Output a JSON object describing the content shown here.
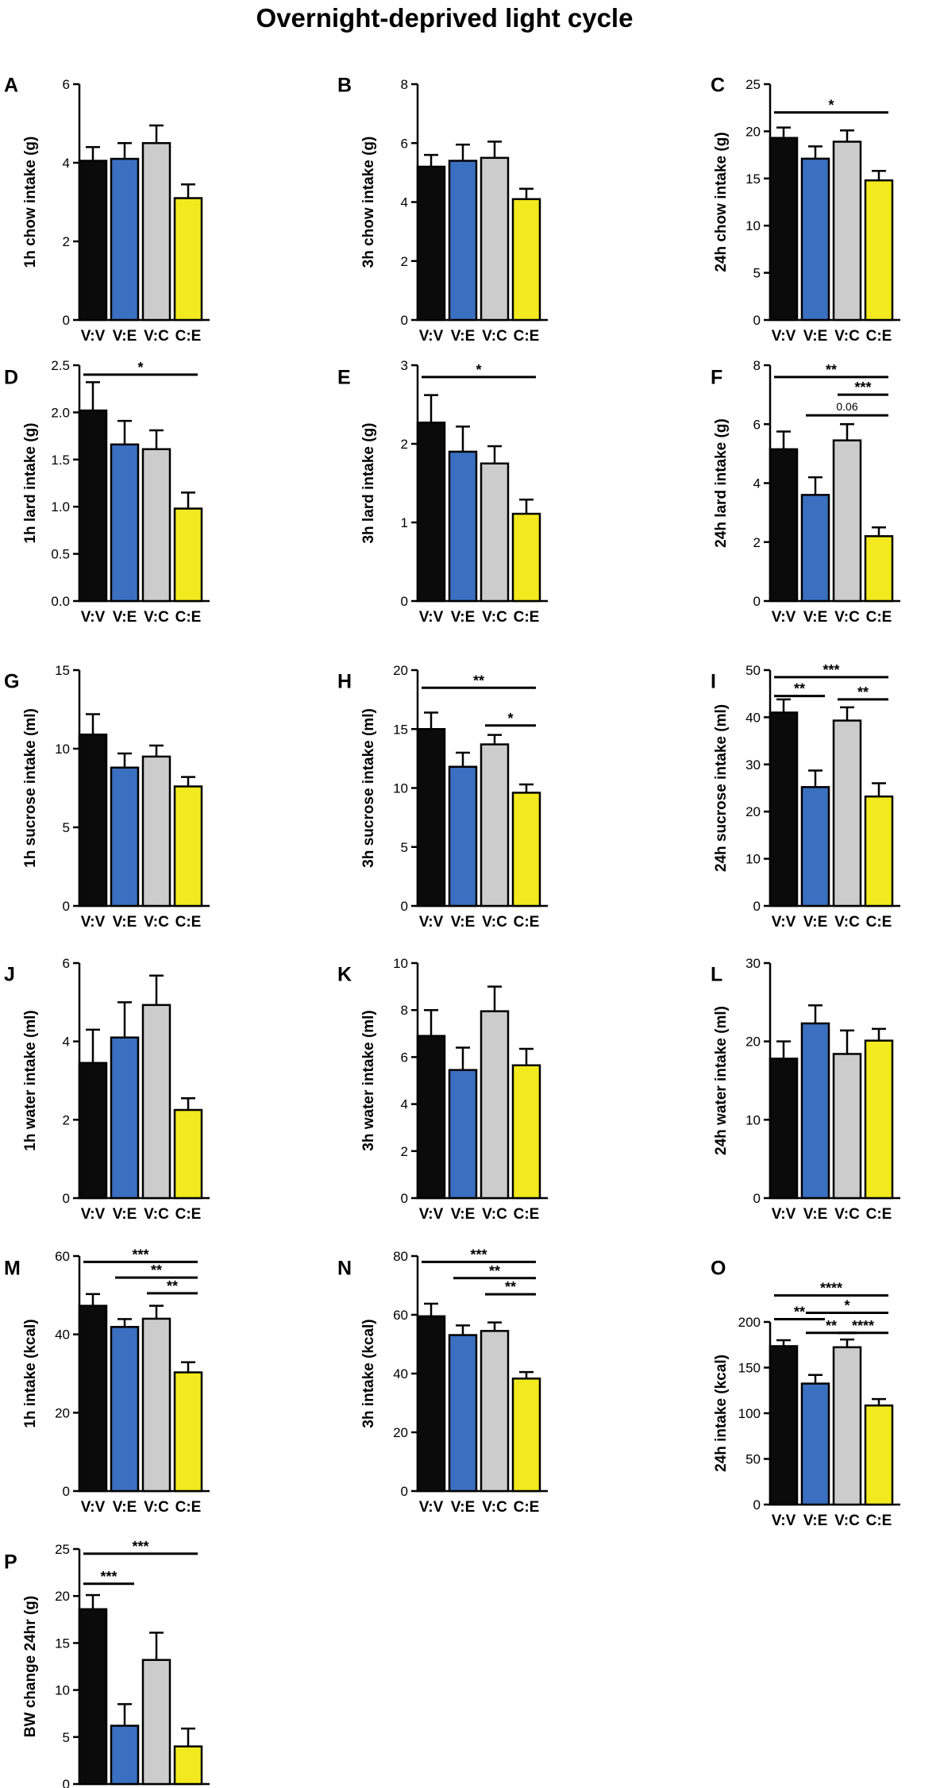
{
  "figure": {
    "title": "Overnight-deprived light cycle"
  },
  "colors": {
    "V:V": "#0b0b0b",
    "V:E": "#3b6fc0",
    "V:C": "#cccccc",
    "C:E": "#f2ea1e",
    "axis": "#000000"
  },
  "chart_data": [
    {
      "panel": "A",
      "type": "bar",
      "ylabel": "1h chow intake (g)",
      "categories": [
        "V:V",
        "V:E",
        "V:C",
        "C:E"
      ],
      "values": [
        4.05,
        4.1,
        4.5,
        3.1
      ],
      "errors": [
        0.35,
        0.4,
        0.45,
        0.35
      ],
      "ylim": [
        0,
        6
      ],
      "yticks": [
        "0",
        "2",
        "4",
        "6"
      ],
      "sig": []
    },
    {
      "panel": "B",
      "type": "bar",
      "ylabel": "3h chow intake (g)",
      "categories": [
        "V:V",
        "V:E",
        "V:C",
        "C:E"
      ],
      "values": [
        5.2,
        5.4,
        5.5,
        4.1
      ],
      "errors": [
        0.4,
        0.55,
        0.55,
        0.35
      ],
      "ylim": [
        0,
        8
      ],
      "yticks": [
        "0",
        "2",
        "4",
        "6",
        "8"
      ],
      "sig": []
    },
    {
      "panel": "C",
      "type": "bar",
      "ylabel": "24h chow intake (g)",
      "categories": [
        "V:V",
        "V:E",
        "V:C",
        "C:E"
      ],
      "values": [
        19.3,
        17.1,
        18.9,
        14.8
      ],
      "errors": [
        1.1,
        1.3,
        1.2,
        1.0
      ],
      "ylim": [
        0,
        25
      ],
      "yticks": [
        "0",
        "5",
        "10",
        "15",
        "20",
        "25"
      ],
      "sig": [
        {
          "from": 0,
          "to": 3,
          "y": 22,
          "label": "*"
        }
      ]
    },
    {
      "panel": "D",
      "type": "bar",
      "ylabel": "1h lard intake (g)",
      "categories": [
        "V:V",
        "V:E",
        "V:C",
        "C:E"
      ],
      "values": [
        2.02,
        1.66,
        1.61,
        0.98
      ],
      "errors": [
        0.3,
        0.25,
        0.2,
        0.17
      ],
      "ylim": [
        0,
        2.5
      ],
      "yticks": [
        "0.0",
        "0.5",
        "1.0",
        "1.5",
        "2.0",
        "2.5"
      ],
      "sig": [
        {
          "from": 0,
          "to": 3,
          "y": 2.4,
          "label": "*"
        }
      ]
    },
    {
      "panel": "E",
      "type": "bar",
      "ylabel": "3h lard intake (g)",
      "categories": [
        "V:V",
        "V:E",
        "V:C",
        "C:E"
      ],
      "values": [
        2.27,
        1.9,
        1.75,
        1.11
      ],
      "errors": [
        0.35,
        0.32,
        0.22,
        0.18
      ],
      "ylim": [
        0,
        3
      ],
      "yticks": [
        "0",
        "1",
        "2",
        "3"
      ],
      "sig": [
        {
          "from": 0,
          "to": 3,
          "y": 2.85,
          "label": "*"
        }
      ]
    },
    {
      "panel": "F",
      "type": "bar",
      "ylabel": "24h lard intake (g)",
      "categories": [
        "V:V",
        "V:E",
        "V:C",
        "C:E"
      ],
      "values": [
        5.15,
        3.6,
        5.45,
        2.2
      ],
      "errors": [
        0.6,
        0.6,
        0.55,
        0.3
      ],
      "ylim": [
        0,
        8
      ],
      "yticks": [
        "0",
        "2",
        "4",
        "6",
        "8"
      ],
      "sig": [
        {
          "from": 0,
          "to": 3,
          "y": 7.6,
          "label": "**"
        },
        {
          "from": 2,
          "to": 3,
          "y": 7.0,
          "label": "***"
        },
        {
          "from": 1,
          "to": 3,
          "y": 6.3,
          "label": "0.06"
        }
      ]
    },
    {
      "panel": "G",
      "type": "bar",
      "ylabel": "1h sucrose intake (ml)",
      "categories": [
        "V:V",
        "V:E",
        "V:C",
        "C:E"
      ],
      "values": [
        10.9,
        8.8,
        9.5,
        7.6
      ],
      "errors": [
        1.3,
        0.9,
        0.7,
        0.6
      ],
      "ylim": [
        0,
        15
      ],
      "yticks": [
        "0",
        "5",
        "10",
        "15"
      ],
      "sig": []
    },
    {
      "panel": "H",
      "type": "bar",
      "ylabel": "3h sucrose intake (ml)",
      "categories": [
        "V:V",
        "V:E",
        "V:C",
        "C:E"
      ],
      "values": [
        15.0,
        11.8,
        13.7,
        9.6
      ],
      "errors": [
        1.4,
        1.2,
        0.8,
        0.7
      ],
      "ylim": [
        0,
        20
      ],
      "yticks": [
        "0",
        "5",
        "10",
        "15",
        "20"
      ],
      "sig": [
        {
          "from": 0,
          "to": 3,
          "y": 18.5,
          "label": "**"
        },
        {
          "from": 2,
          "to": 3,
          "y": 15.3,
          "label": "*"
        }
      ]
    },
    {
      "panel": "I",
      "type": "bar",
      "ylabel": "24h sucrose intake (ml)",
      "categories": [
        "V:V",
        "V:E",
        "V:C",
        "C:E"
      ],
      "values": [
        41.0,
        25.2,
        39.3,
        23.2
      ],
      "errors": [
        2.8,
        3.5,
        2.8,
        2.8
      ],
      "ylim": [
        0,
        50
      ],
      "yticks": [
        "0",
        "10",
        "20",
        "30",
        "40",
        "50"
      ],
      "sig": [
        {
          "from": 0,
          "to": 3,
          "y": 48.5,
          "label": "***"
        },
        {
          "from": 0,
          "to": 1,
          "y": 44.5,
          "label": "**"
        },
        {
          "from": 2,
          "to": 3,
          "y": 43.8,
          "label": "**"
        }
      ]
    },
    {
      "panel": "J",
      "type": "bar",
      "ylabel": "1h water intake (ml)",
      "categories": [
        "V:V",
        "V:E",
        "V:C",
        "C:E"
      ],
      "values": [
        3.45,
        4.1,
        4.93,
        2.25
      ],
      "errors": [
        0.85,
        0.9,
        0.75,
        0.3
      ],
      "ylim": [
        0,
        6
      ],
      "yticks": [
        "0",
        "2",
        "4",
        "6"
      ],
      "sig": []
    },
    {
      "panel": "K",
      "type": "bar",
      "ylabel": "3h water intake (ml)",
      "categories": [
        "V:V",
        "V:E",
        "V:C",
        "C:E"
      ],
      "values": [
        6.9,
        5.45,
        7.95,
        5.65
      ],
      "errors": [
        1.1,
        0.95,
        1.05,
        0.7
      ],
      "ylim": [
        0,
        10
      ],
      "yticks": [
        "0",
        "2",
        "4",
        "6",
        "8",
        "10"
      ],
      "sig": []
    },
    {
      "panel": "L",
      "type": "bar",
      "ylabel": "24h water intake (ml)",
      "categories": [
        "V:V",
        "V:E",
        "V:C",
        "C:E"
      ],
      "values": [
        17.8,
        22.3,
        18.4,
        20.1
      ],
      "errors": [
        2.2,
        2.3,
        3.0,
        1.5
      ],
      "ylim": [
        0,
        30
      ],
      "yticks": [
        "0",
        "10",
        "20",
        "30"
      ],
      "sig": []
    },
    {
      "panel": "M",
      "type": "bar",
      "ylabel": "1h intake (kcal)",
      "categories": [
        "V:V",
        "V:E",
        "V:C",
        "C:E"
      ],
      "values": [
        47.3,
        41.9,
        44.0,
        30.3
      ],
      "errors": [
        3.0,
        2.0,
        3.3,
        2.6
      ],
      "ylim": [
        0,
        60
      ],
      "yticks": [
        "0",
        "20",
        "40",
        "60"
      ],
      "sig": [
        {
          "from": 0,
          "to": 3,
          "y": 58.5,
          "label": "***"
        },
        {
          "from": 1,
          "to": 3,
          "y": 54.5,
          "label": "**"
        },
        {
          "from": 2,
          "to": 3,
          "y": 50.5,
          "label": "**"
        }
      ]
    },
    {
      "panel": "N",
      "type": "bar",
      "ylabel": "3h intake (kcal)",
      "categories": [
        "V:V",
        "V:E",
        "V:C",
        "C:E"
      ],
      "values": [
        59.5,
        53.1,
        54.5,
        38.3
      ],
      "errors": [
        4.3,
        3.3,
        2.9,
        2.2
      ],
      "ylim": [
        0,
        80
      ],
      "yticks": [
        "0",
        "20",
        "40",
        "60",
        "80"
      ],
      "sig": [
        {
          "from": 0,
          "to": 3,
          "y": 78,
          "label": "***"
        },
        {
          "from": 1,
          "to": 3,
          "y": 72.5,
          "label": "**"
        },
        {
          "from": 2,
          "to": 3,
          "y": 67,
          "label": "**"
        }
      ]
    },
    {
      "panel": "O",
      "type": "bar",
      "ylabel": "24h intake (kcal)",
      "categories": [
        "V:V",
        "V:E",
        "V:C",
        "C:E"
      ],
      "values": [
        173.5,
        132.5,
        172.3,
        108.5
      ],
      "errors": [
        6.5,
        9.5,
        8.5,
        7.0
      ],
      "ylim": [
        0,
        200
      ],
      "yticks": [
        "0",
        "50",
        "100",
        "150",
        "200"
      ],
      "sig": [
        {
          "from": 0,
          "to": 3,
          "y": 229,
          "label": "****"
        },
        {
          "from": 0,
          "to": 1,
          "y": 203,
          "label": "**"
        },
        {
          "from": 1,
          "to": 3,
          "y": 210,
          "label": "*"
        },
        {
          "from": 1,
          "to": 2,
          "y": 188,
          "label": "**"
        },
        {
          "from": 2,
          "to": 3,
          "y": 188,
          "label": "****"
        }
      ]
    },
    {
      "panel": "P",
      "type": "bar",
      "ylabel": "BW change 24hr (g)",
      "categories": [
        "V:V",
        "V:E",
        "V:C",
        "C:E"
      ],
      "values": [
        18.6,
        6.2,
        13.2,
        4.0
      ],
      "errors": [
        1.5,
        2.3,
        2.9,
        1.9
      ],
      "ylim": [
        0,
        25
      ],
      "yticks": [
        "0",
        "5",
        "10",
        "15",
        "20",
        "25"
      ],
      "sig": [
        {
          "from": 0,
          "to": 3,
          "y": 24.5,
          "label": "***"
        },
        {
          "from": 0,
          "to": 1,
          "y": 21.3,
          "label": "***"
        }
      ]
    }
  ]
}
